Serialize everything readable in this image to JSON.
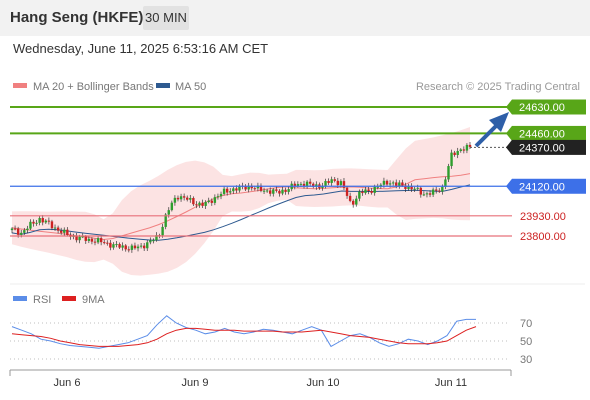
{
  "header": {
    "title": "Hang Seng (HKFE)",
    "interval": "30 MIN",
    "datetime": "Wednesday, June 11, 2025 6:53:16 AM CET"
  },
  "legend": {
    "ma20": "MA 20 + Bollinger Bands",
    "ma50": "MA 50",
    "credit": "Research © 2025 Trading Central",
    "rsi": "RSI",
    "ma9": "9MA"
  },
  "colors": {
    "resistance": "#58a618",
    "pivot": "#3d70e8",
    "support": "#e8707a",
    "current": "#222222",
    "arrow": "#2e5fa8",
    "ma20": "#f08080",
    "ma50": "#2e5a90",
    "bollinger_fill": "#fbdcdc",
    "candle_up": "#2e9e2e",
    "candle_down": "#cc2222",
    "rsi": "#5b8de8",
    "ma9": "#dd2020"
  },
  "chart_data": {
    "type": "candlestick",
    "x_ticks": [
      "Jun 6",
      "Jun 9",
      "Jun 10",
      "Jun 11"
    ],
    "price_levels": [
      {
        "kind": "resistance",
        "value": 24630,
        "label": "24630.00"
      },
      {
        "kind": "resistance",
        "value": 24460,
        "label": "24460.00"
      },
      {
        "kind": "current",
        "value": 24370,
        "label": "24370.00"
      },
      {
        "kind": "pivot",
        "value": 24120,
        "label": "24120.00"
      },
      {
        "kind": "support",
        "value": 23930,
        "label": "23930.00"
      },
      {
        "kind": "support",
        "value": 23800,
        "label": "23800.00"
      }
    ],
    "close_path": [
      23840,
      23820,
      23870,
      23910,
      23880,
      23840,
      23810,
      23790,
      23780,
      23770,
      23760,
      23740,
      23730,
      23720,
      23730,
      23760,
      23800,
      23960,
      24060,
      24040,
      24010,
      24000,
      24040,
      24080,
      24100,
      24110,
      24120,
      24100,
      24090,
      24080,
      24100,
      24130,
      24140,
      24120,
      24130,
      24160,
      24140,
      24000,
      24080,
      24090,
      24120,
      24150,
      24130,
      24120,
      24100,
      24070,
      24080,
      24110,
      24320,
      24360,
      24370
    ],
    "rsi_ticks": [
      70,
      50,
      30
    ],
    "rsi_values": [
      66,
      62,
      58,
      52,
      50,
      47,
      45,
      44,
      43,
      42,
      44,
      46,
      48,
      52,
      56,
      68,
      78,
      70,
      65,
      62,
      58,
      60,
      64,
      60,
      58,
      60,
      63,
      62,
      60,
      58,
      62,
      66,
      62,
      44,
      50,
      56,
      58,
      54,
      48,
      44,
      47,
      52,
      50,
      46,
      50,
      56,
      72,
      74,
      74
    ],
    "ma9_values": [
      58,
      57,
      56,
      55,
      53,
      50,
      48,
      46,
      45,
      44,
      44,
      44,
      45,
      46,
      48,
      52,
      58,
      62,
      64,
      64,
      63,
      62,
      62,
      62,
      61,
      61,
      61,
      61,
      60,
      60,
      60,
      61,
      62,
      60,
      58,
      56,
      55,
      54,
      52,
      50,
      48,
      47,
      47,
      47,
      48,
      50,
      56,
      62,
      66
    ]
  }
}
